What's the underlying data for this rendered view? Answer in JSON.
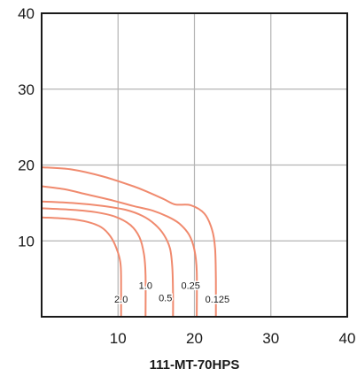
{
  "chart_data": {
    "type": "line",
    "title": "111-MT-70HPS",
    "xlabel": "",
    "ylabel": "",
    "xlim": [
      0,
      40
    ],
    "ylim": [
      0,
      40
    ],
    "xticks": [
      10,
      20,
      30,
      40
    ],
    "yticks": [
      10,
      20,
      30,
      40
    ],
    "grid": true,
    "line_color": "#f08a6e",
    "series": [
      {
        "name": "0.125",
        "points": [
          [
            0,
            19.7
          ],
          [
            4,
            19.4
          ],
          [
            8,
            18.5
          ],
          [
            12,
            17.2
          ],
          [
            14,
            16.4
          ],
          [
            16,
            15.5
          ],
          [
            17.5,
            14.8
          ],
          [
            19.5,
            14.7
          ],
          [
            21.3,
            13.6
          ],
          [
            22.3,
            11.5
          ],
          [
            22.7,
            9
          ],
          [
            22.8,
            5
          ],
          [
            22.8,
            0
          ]
        ]
      },
      {
        "name": "0.25",
        "points": [
          [
            0,
            17.2
          ],
          [
            3,
            16.8
          ],
          [
            6,
            16.1
          ],
          [
            9,
            15.4
          ],
          [
            12,
            14.6
          ],
          [
            14.5,
            14
          ],
          [
            16.5,
            13.2
          ],
          [
            18,
            12.3
          ],
          [
            19.3,
            10.8
          ],
          [
            20,
            8.8
          ],
          [
            20.3,
            6
          ],
          [
            20.3,
            0
          ]
        ]
      },
      {
        "name": "0.5",
        "points": [
          [
            0,
            15.2
          ],
          [
            4,
            15
          ],
          [
            8,
            14.6
          ],
          [
            11,
            14.1
          ],
          [
            13.2,
            13.3
          ],
          [
            14.8,
            12.2
          ],
          [
            16,
            10.8
          ],
          [
            16.8,
            9
          ],
          [
            17.1,
            6.5
          ],
          [
            17.2,
            3
          ],
          [
            17.2,
            0
          ]
        ]
      },
      {
        "name": "1.0",
        "points": [
          [
            0,
            14.3
          ],
          [
            4,
            14.1
          ],
          [
            7,
            13.8
          ],
          [
            9.6,
            13.2
          ],
          [
            11.6,
            12.1
          ],
          [
            12.8,
            10.5
          ],
          [
            13.4,
            8.2
          ],
          [
            13.6,
            5.5
          ],
          [
            13.6,
            0
          ]
        ]
      },
      {
        "name": "2.0",
        "points": [
          [
            0,
            13.1
          ],
          [
            3.5,
            12.9
          ],
          [
            6,
            12.5
          ],
          [
            7.8,
            11.8
          ],
          [
            9,
            10.6
          ],
          [
            9.8,
            9
          ],
          [
            10.3,
            7.2
          ],
          [
            10.4,
            5
          ],
          [
            10.4,
            0
          ]
        ]
      }
    ],
    "labels": [
      {
        "text": "2.0",
        "x": 10.4,
        "y": 2.2
      },
      {
        "text": "1.0",
        "x": 13.6,
        "y": 4.0
      },
      {
        "text": "0.5",
        "x": 16.2,
        "y": 2.4
      },
      {
        "text": "0.25",
        "x": 19.5,
        "y": 4.0
      },
      {
        "text": "0.125",
        "x": 23.0,
        "y": 2.2
      }
    ]
  }
}
